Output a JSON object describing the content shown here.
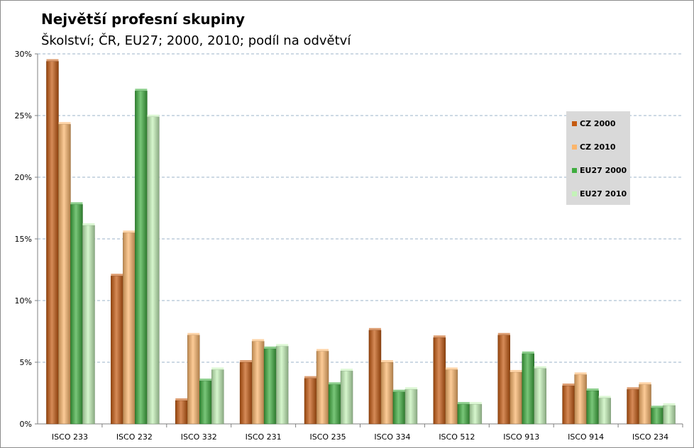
{
  "title": "Největší profesní skupiny",
  "subtitle": "Školství; ČR, EU27; 2000, 2010; podíl na odvětví",
  "colors": {
    "CZ 2000": "#c55a11",
    "CZ 2010": "#fbb56b",
    "EU27 2000": "#3fad3f",
    "EU27 2010": "#c4f2b8",
    "grid": "#9bb3c9",
    "axis": "#7f7f7f",
    "legend_bg": "#d9d9d9"
  },
  "chart_data": {
    "type": "bar",
    "categories": [
      "ISCO 233",
      "ISCO 232",
      "ISCO 332",
      "ISCO 231",
      "ISCO 235",
      "ISCO 334",
      "ISCO 512",
      "ISCO 913",
      "ISCO 914",
      "ISCO 234"
    ],
    "series": [
      {
        "name": "CZ 2000",
        "values": [
          29.4,
          12.0,
          1.9,
          5.0,
          3.7,
          7.6,
          7.0,
          7.2,
          3.1,
          2.8
        ]
      },
      {
        "name": "CZ 2010",
        "values": [
          24.3,
          15.5,
          7.2,
          6.7,
          5.9,
          5.0,
          4.4,
          4.2,
          4.0,
          3.2
        ]
      },
      {
        "name": "EU27 2000",
        "values": [
          17.8,
          27.0,
          3.5,
          6.1,
          3.2,
          2.6,
          1.6,
          5.7,
          2.7,
          1.3
        ]
      },
      {
        "name": "EU27 2010",
        "values": [
          16.1,
          24.9,
          4.4,
          6.3,
          4.3,
          2.8,
          1.6,
          4.5,
          2.1,
          1.5
        ]
      }
    ],
    "yticks": [
      "0%",
      "5%",
      "10%",
      "15%",
      "20%",
      "25%",
      "30%"
    ],
    "ylim": [
      0,
      30
    ],
    "grid": true,
    "legend_position": "right"
  }
}
